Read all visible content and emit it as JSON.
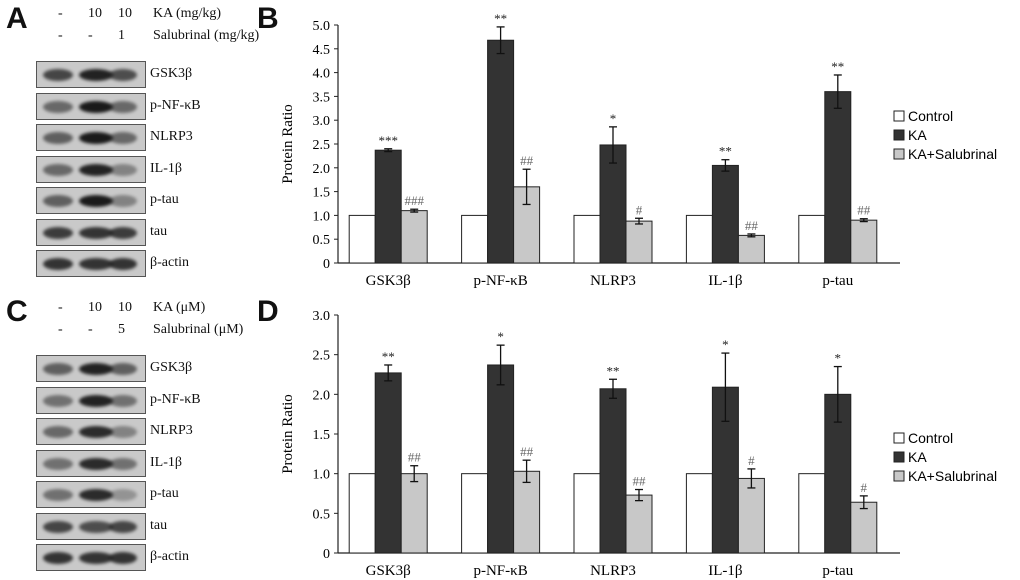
{
  "panels": {
    "a": {
      "letter": "A",
      "lanes": [
        {
          "ka": "-",
          "sal": "-"
        },
        {
          "ka": "10",
          "sal": "-"
        },
        {
          "ka": "10",
          "sal": "1"
        }
      ],
      "ka_label": "KA (mg/kg)",
      "sal_label": "Salubrinal (mg/kg)",
      "rows": [
        {
          "label": "GSK3β",
          "bands": [
            0.75,
            0.95,
            0.7
          ]
        },
        {
          "label": "p-NF-κB",
          "bands": [
            0.55,
            1.0,
            0.55
          ]
        },
        {
          "label": "NLRP3",
          "bands": [
            0.6,
            1.0,
            0.55
          ]
        },
        {
          "label": "IL-1β",
          "bands": [
            0.55,
            0.95,
            0.4
          ]
        },
        {
          "label": "p-tau",
          "bands": [
            0.6,
            1.0,
            0.4
          ]
        },
        {
          "label": "tau",
          "bands": [
            0.8,
            0.85,
            0.8
          ]
        },
        {
          "label": "β-actin",
          "bands": [
            0.85,
            0.85,
            0.85
          ]
        }
      ]
    },
    "c": {
      "letter": "C",
      "lanes": [
        {
          "ka": "-",
          "sal": "-"
        },
        {
          "ka": "10",
          "sal": "-"
        },
        {
          "ka": "10",
          "sal": "5"
        }
      ],
      "ka_label": "KA (μM)",
      "sal_label": "Salubrinal (μM)",
      "rows": [
        {
          "label": "GSK3β",
          "bands": [
            0.6,
            0.95,
            0.6
          ]
        },
        {
          "label": "p-NF-κB",
          "bands": [
            0.5,
            0.95,
            0.5
          ]
        },
        {
          "label": "NLRP3",
          "bands": [
            0.55,
            0.9,
            0.4
          ]
        },
        {
          "label": "IL-1β",
          "bands": [
            0.5,
            0.9,
            0.5
          ]
        },
        {
          "label": "p-tau",
          "bands": [
            0.5,
            0.9,
            0.3
          ]
        },
        {
          "label": "tau",
          "bands": [
            0.75,
            0.7,
            0.75
          ]
        },
        {
          "label": "β-actin",
          "bands": [
            0.85,
            0.85,
            0.85
          ]
        }
      ]
    }
  },
  "colors": {
    "control": "#ffffff",
    "ka": "#333333",
    "ka_salubrinal": "#c8c8c8",
    "axis": "#222222"
  },
  "chart_data": [
    {
      "id": "B",
      "letter": "B",
      "type": "bar",
      "ylabel": "Protein Ratio",
      "xlabel": "",
      "ylim": [
        0,
        5.0
      ],
      "yticks": [
        "0",
        "0.5",
        "1.0",
        "1.5",
        "2.0",
        "2.5",
        "3.0",
        "3.5",
        "4.0",
        "4.5",
        "5.0"
      ],
      "categories": [
        "GSK3β",
        "p-NF-κB",
        "NLRP3",
        "IL-1β",
        "p-tau"
      ],
      "legend_position": "right",
      "series": [
        {
          "name": "Control",
          "values": [
            1.0,
            1.0,
            1.0,
            1.0,
            1.0
          ],
          "errors": [
            0,
            0,
            0,
            0,
            0
          ],
          "labels": [
            "",
            "",
            "",
            "",
            ""
          ]
        },
        {
          "name": "KA",
          "values": [
            2.37,
            4.68,
            2.48,
            2.05,
            3.6
          ],
          "errors": [
            0.03,
            0.28,
            0.38,
            0.12,
            0.35
          ],
          "labels": [
            "***",
            "**",
            "*",
            "**",
            "**"
          ]
        },
        {
          "name": "KA+Salubrinal",
          "values": [
            1.1,
            1.6,
            0.88,
            0.58,
            0.9
          ],
          "errors": [
            0.03,
            0.37,
            0.06,
            0.03,
            0.03
          ],
          "labels": [
            "###",
            "##",
            "#",
            "##",
            "##"
          ]
        }
      ]
    },
    {
      "id": "D",
      "letter": "D",
      "type": "bar",
      "ylabel": "Protein Ratio",
      "xlabel": "",
      "ylim": [
        0,
        3.0
      ],
      "yticks": [
        "0",
        "0.5",
        "1.0",
        "1.5",
        "2.0",
        "2.5",
        "3.0"
      ],
      "categories": [
        "GSK3β",
        "p-NF-κB",
        "NLRP3",
        "IL-1β",
        "p-tau"
      ],
      "legend_position": "right",
      "series": [
        {
          "name": "Control",
          "values": [
            1.0,
            1.0,
            1.0,
            1.0,
            1.0
          ],
          "errors": [
            0,
            0,
            0,
            0,
            0
          ],
          "labels": [
            "",
            "",
            "",
            "",
            ""
          ]
        },
        {
          "name": "KA",
          "values": [
            2.27,
            2.37,
            2.07,
            2.09,
            2.0
          ],
          "errors": [
            0.1,
            0.25,
            0.12,
            0.43,
            0.35
          ],
          "labels": [
            "**",
            "*",
            "**",
            "*",
            "*"
          ]
        },
        {
          "name": "KA+Salubrinal",
          "values": [
            1.0,
            1.03,
            0.73,
            0.94,
            0.64
          ],
          "errors": [
            0.1,
            0.14,
            0.07,
            0.12,
            0.08
          ],
          "labels": [
            "##",
            "##",
            "##",
            "#",
            "#"
          ]
        }
      ]
    }
  ]
}
